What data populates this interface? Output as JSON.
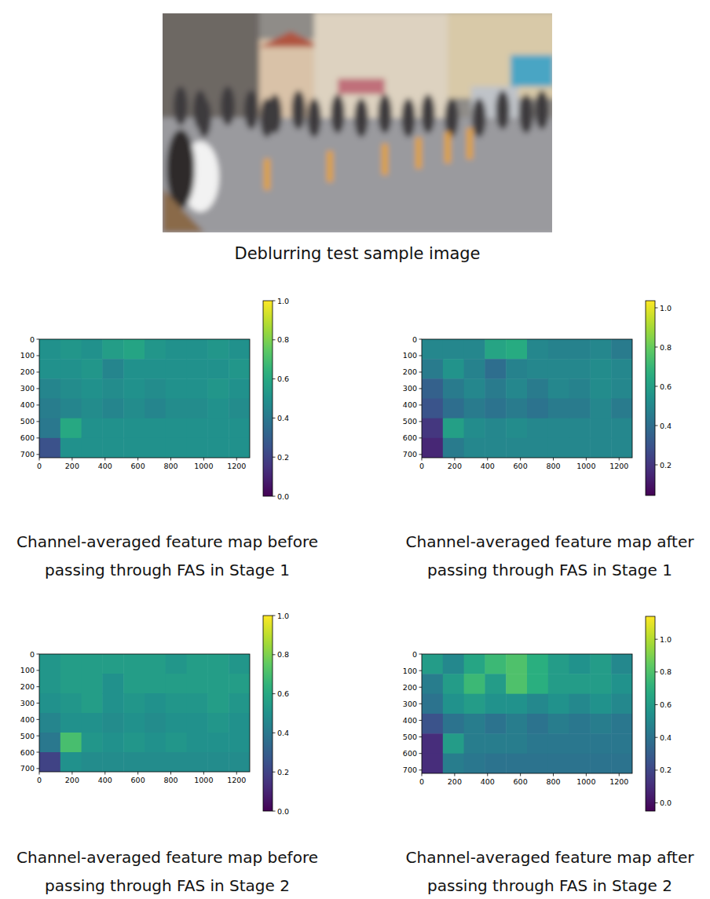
{
  "figure": {
    "photo_caption": "Deblurring test sample image"
  },
  "chart_data": [
    {
      "type": "heatmap",
      "caption": [
        "Channel-averaged feature map before",
        "passing through FAS in Stage 1"
      ],
      "xlim": [
        0,
        1280
      ],
      "ylim": [
        720,
        0
      ],
      "xticks": [
        0,
        200,
        400,
        600,
        800,
        1000,
        1200
      ],
      "yticks": [
        0,
        100,
        200,
        300,
        400,
        500,
        600,
        700
      ],
      "cells": [
        [
          0.5,
          0.52,
          0.5,
          0.55,
          0.58,
          0.52,
          0.5,
          0.5,
          0.52,
          0.5
        ],
        [
          0.5,
          0.5,
          0.52,
          0.45,
          0.5,
          0.5,
          0.5,
          0.5,
          0.5,
          0.52
        ],
        [
          0.45,
          0.48,
          0.5,
          0.48,
          0.5,
          0.48,
          0.5,
          0.5,
          0.52,
          0.5
        ],
        [
          0.42,
          0.45,
          0.48,
          0.45,
          0.48,
          0.45,
          0.48,
          0.48,
          0.5,
          0.48
        ],
        [
          0.4,
          0.6,
          0.5,
          0.5,
          0.5,
          0.5,
          0.5,
          0.5,
          0.5,
          0.5
        ],
        [
          0.25,
          0.5,
          0.5,
          0.5,
          0.5,
          0.5,
          0.5,
          0.5,
          0.5,
          0.5
        ]
      ],
      "colorbar": {
        "range": [
          0,
          1
        ],
        "ticks": [
          {
            "value": 0,
            "label": "0.0"
          },
          0.2,
          0.4,
          0.6,
          0.8,
          {
            "value": 1,
            "label": "1.0"
          }
        ]
      }
    },
    {
      "type": "heatmap",
      "caption": [
        "Channel-averaged feature map after",
        "passing through FAS in Stage 1"
      ],
      "xlim": [
        0,
        1280
      ],
      "ylim": [
        720,
        0
      ],
      "xticks": [
        0,
        200,
        400,
        600,
        800,
        1000,
        1200
      ],
      "yticks": [
        0,
        100,
        200,
        300,
        400,
        500,
        600,
        700
      ],
      "cells": [
        [
          0.5,
          0.5,
          0.5,
          0.62,
          0.65,
          0.5,
          0.48,
          0.48,
          0.5,
          0.45
        ],
        [
          0.45,
          0.55,
          0.48,
          0.4,
          0.48,
          0.5,
          0.5,
          0.5,
          0.52,
          0.5
        ],
        [
          0.35,
          0.45,
          0.5,
          0.45,
          0.5,
          0.45,
          0.5,
          0.48,
          0.52,
          0.5
        ],
        [
          0.3,
          0.4,
          0.45,
          0.42,
          0.45,
          0.42,
          0.45,
          0.45,
          0.5,
          0.45
        ],
        [
          0.2,
          0.6,
          0.52,
          0.5,
          0.52,
          0.5,
          0.5,
          0.5,
          0.5,
          0.5
        ],
        [
          0.15,
          0.45,
          0.5,
          0.5,
          0.5,
          0.5,
          0.5,
          0.5,
          0.5,
          0.5
        ]
      ],
      "colorbar": {
        "range": [
          0.044,
          1.036
        ],
        "ticks": [
          0.2,
          0.4,
          0.6,
          0.8,
          {
            "value": 1,
            "label": "1.0"
          }
        ]
      }
    },
    {
      "type": "heatmap",
      "caption": [
        "Channel-averaged feature map before",
        "passing through FAS in Stage 2"
      ],
      "xlim": [
        0,
        1280
      ],
      "ylim": [
        720,
        0
      ],
      "xticks": [
        0,
        200,
        400,
        600,
        800,
        1000,
        1200
      ],
      "yticks": [
        0,
        100,
        200,
        300,
        400,
        500,
        600,
        700
      ],
      "cells": [
        [
          0.52,
          0.55,
          0.55,
          0.55,
          0.55,
          0.55,
          0.52,
          0.55,
          0.55,
          0.52
        ],
        [
          0.52,
          0.55,
          0.55,
          0.5,
          0.55,
          0.55,
          0.55,
          0.55,
          0.55,
          0.55
        ],
        [
          0.5,
          0.52,
          0.55,
          0.5,
          0.52,
          0.5,
          0.52,
          0.52,
          0.55,
          0.52
        ],
        [
          0.45,
          0.5,
          0.5,
          0.48,
          0.5,
          0.48,
          0.5,
          0.5,
          0.52,
          0.5
        ],
        [
          0.4,
          0.7,
          0.52,
          0.5,
          0.52,
          0.5,
          0.52,
          0.5,
          0.5,
          0.5
        ],
        [
          0.2,
          0.5,
          0.48,
          0.48,
          0.48,
          0.48,
          0.48,
          0.48,
          0.48,
          0.48
        ]
      ],
      "colorbar": {
        "range": [
          0,
          1
        ],
        "ticks": [
          {
            "value": 0,
            "label": "0.0"
          },
          0.2,
          0.4,
          0.6,
          0.8,
          {
            "value": 1,
            "label": "1.0"
          }
        ]
      }
    },
    {
      "type": "heatmap",
      "caption": [
        "Channel-averaged feature map after",
        "passing through FAS in Stage 2"
      ],
      "xlim": [
        0,
        1280
      ],
      "ylim": [
        720,
        0
      ],
      "xticks": [
        0,
        200,
        400,
        600,
        800,
        1000,
        1200
      ],
      "yticks": [
        0,
        100,
        200,
        300,
        400,
        500,
        600,
        700
      ],
      "cells": [
        [
          0.6,
          0.5,
          0.65,
          0.75,
          0.8,
          0.7,
          0.6,
          0.55,
          0.6,
          0.5
        ],
        [
          0.45,
          0.6,
          0.75,
          0.6,
          0.8,
          0.7,
          0.6,
          0.6,
          0.6,
          0.55
        ],
        [
          0.4,
          0.55,
          0.6,
          0.55,
          0.55,
          0.5,
          0.55,
          0.5,
          0.55,
          0.5
        ],
        [
          0.25,
          0.4,
          0.45,
          0.4,
          0.45,
          0.4,
          0.45,
          0.42,
          0.45,
          0.42
        ],
        [
          0.1,
          0.6,
          0.45,
          0.45,
          0.45,
          0.42,
          0.42,
          0.42,
          0.42,
          0.42
        ],
        [
          0.1,
          0.45,
          0.42,
          0.4,
          0.4,
          0.4,
          0.4,
          0.4,
          0.4,
          0.4
        ]
      ],
      "colorbar": {
        "range": [
          -0.05,
          1.14
        ],
        "ticks": [
          {
            "value": 0,
            "label": "0.0"
          },
          0.2,
          0.4,
          0.6,
          0.8,
          {
            "value": 1,
            "label": "1.0"
          }
        ]
      }
    }
  ]
}
